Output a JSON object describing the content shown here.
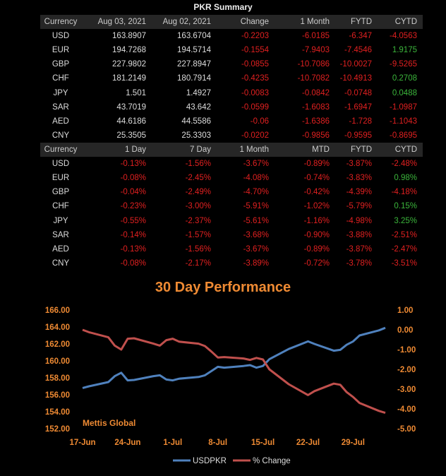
{
  "summary": {
    "title": "PKR Summary",
    "table1": {
      "headers": [
        "Currency",
        "Aug 03, 2021",
        "Aug 02, 2021",
        "Change",
        "1 Month",
        "FYTD",
        "CYTD"
      ],
      "rows": [
        [
          "USD",
          "163.8907",
          "163.6704",
          "-0.2203",
          "-6.0185",
          "-6.347",
          "-4.0563"
        ],
        [
          "EUR",
          "194.7268",
          "194.5714",
          "-0.1554",
          "-7.9403",
          "-7.4546",
          "1.9175"
        ],
        [
          "GBP",
          "227.9802",
          "227.8947",
          "-0.0855",
          "-10.7086",
          "-10.0027",
          "-9.5265"
        ],
        [
          "CHF",
          "181.2149",
          "180.7914",
          "-0.4235",
          "-10.7082",
          "-10.4913",
          "0.2708"
        ],
        [
          "JPY",
          "1.501",
          "1.4927",
          "-0.0083",
          "-0.0842",
          "-0.0748",
          "0.0488"
        ],
        [
          "SAR",
          "43.7019",
          "43.642",
          "-0.0599",
          "-1.6083",
          "-1.6947",
          "-1.0987"
        ],
        [
          "AED",
          "44.6186",
          "44.5586",
          "-0.06",
          "-1.6386",
          "-1.728",
          "-1.1043"
        ],
        [
          "CNY",
          "25.3505",
          "25.3303",
          "-0.0202",
          "-0.9856",
          "-0.9595",
          "-0.8695"
        ]
      ]
    },
    "table2": {
      "headers": [
        "Currency",
        "1 Day",
        "7 Day",
        "1 Month",
        "MTD",
        "FYTD",
        "CYTD"
      ],
      "rows": [
        [
          "USD",
          "-0.13%",
          "-1.56%",
          "-3.67%",
          "-0.89%",
          "-3.87%",
          "-2.48%"
        ],
        [
          "EUR",
          "-0.08%",
          "-2.45%",
          "-4.08%",
          "-0.74%",
          "-3.83%",
          "0.98%"
        ],
        [
          "GBP",
          "-0.04%",
          "-2.49%",
          "-4.70%",
          "-0.42%",
          "-4.39%",
          "-4.18%"
        ],
        [
          "CHF",
          "-0.23%",
          "-3.00%",
          "-5.91%",
          "-1.02%",
          "-5.79%",
          "0.15%"
        ],
        [
          "JPY",
          "-0.55%",
          "-2.37%",
          "-5.61%",
          "-1.16%",
          "-4.98%",
          "3.25%"
        ],
        [
          "SAR",
          "-0.14%",
          "-1.57%",
          "-3.68%",
          "-0.90%",
          "-3.88%",
          "-2.51%"
        ],
        [
          "AED",
          "-0.13%",
          "-1.56%",
          "-3.67%",
          "-0.89%",
          "-3.87%",
          "-2.47%"
        ],
        [
          "CNY",
          "-0.08%",
          "-2.17%",
          "-3.89%",
          "-0.72%",
          "-3.78%",
          "-3.51%"
        ]
      ]
    }
  },
  "colors": {
    "negative": "#e02020",
    "positive": "#3bb53b",
    "usd_line": "#4f81bd",
    "change_line": "#c0504d",
    "accent": "#ee8a33"
  },
  "chart_data": {
    "type": "line",
    "title": "30 Day Performance",
    "watermark": "Mettis Global",
    "x_tick_labels": [
      "17-Jun",
      "24-Jun",
      "1-Jul",
      "8-Jul",
      "15-Jul",
      "22-Jul",
      "29-Jul"
    ],
    "y_left": {
      "range": [
        152,
        166
      ],
      "ticks": [
        "152.00",
        "154.00",
        "156.00",
        "158.00",
        "160.00",
        "162.00",
        "164.00",
        "166.00"
      ]
    },
    "y_right": {
      "range": [
        -5,
        1
      ],
      "ticks": [
        "-5.00",
        "-4.00",
        "-3.00",
        "-2.00",
        "-1.00",
        "0.00",
        "1.00"
      ]
    },
    "x": [
      "2021-06-17",
      "2021-06-18",
      "2021-06-21",
      "2021-06-22",
      "2021-06-23",
      "2021-06-24",
      "2021-06-25",
      "2021-06-28",
      "2021-06-29",
      "2021-06-30",
      "2021-07-01",
      "2021-07-02",
      "2021-07-05",
      "2021-07-06",
      "2021-07-07",
      "2021-07-08",
      "2021-07-09",
      "2021-07-12",
      "2021-07-13",
      "2021-07-14",
      "2021-07-15",
      "2021-07-16",
      "2021-07-19",
      "2021-07-22",
      "2021-07-23",
      "2021-07-26",
      "2021-07-27",
      "2021-07-28",
      "2021-07-29",
      "2021-07-30",
      "2021-08-02",
      "2021-08-03"
    ],
    "series": [
      {
        "name": "USDPKR",
        "axis": "left",
        "values": [
          156.8,
          157.0,
          157.5,
          158.2,
          158.6,
          157.7,
          157.75,
          158.2,
          158.3,
          157.8,
          157.7,
          157.9,
          158.1,
          158.3,
          158.8,
          159.3,
          159.2,
          159.4,
          159.5,
          159.2,
          159.4,
          160.2,
          161.4,
          162.3,
          162.0,
          161.2,
          161.3,
          161.9,
          162.3,
          163.0,
          163.6,
          163.9
        ]
      },
      {
        "name": "% Change",
        "axis": "right",
        "values": [
          0.0,
          -0.12,
          -0.38,
          -0.8,
          -1.0,
          -0.45,
          -0.43,
          -0.7,
          -0.8,
          -0.52,
          -0.45,
          -0.6,
          -0.7,
          -0.82,
          -1.1,
          -1.4,
          -1.38,
          -1.45,
          -1.52,
          -1.42,
          -1.5,
          -2.0,
          -2.75,
          -3.3,
          -3.1,
          -2.72,
          -2.78,
          -3.15,
          -3.4,
          -3.7,
          -4.1,
          -4.2
        ]
      }
    ],
    "legend_position": "bottom"
  }
}
